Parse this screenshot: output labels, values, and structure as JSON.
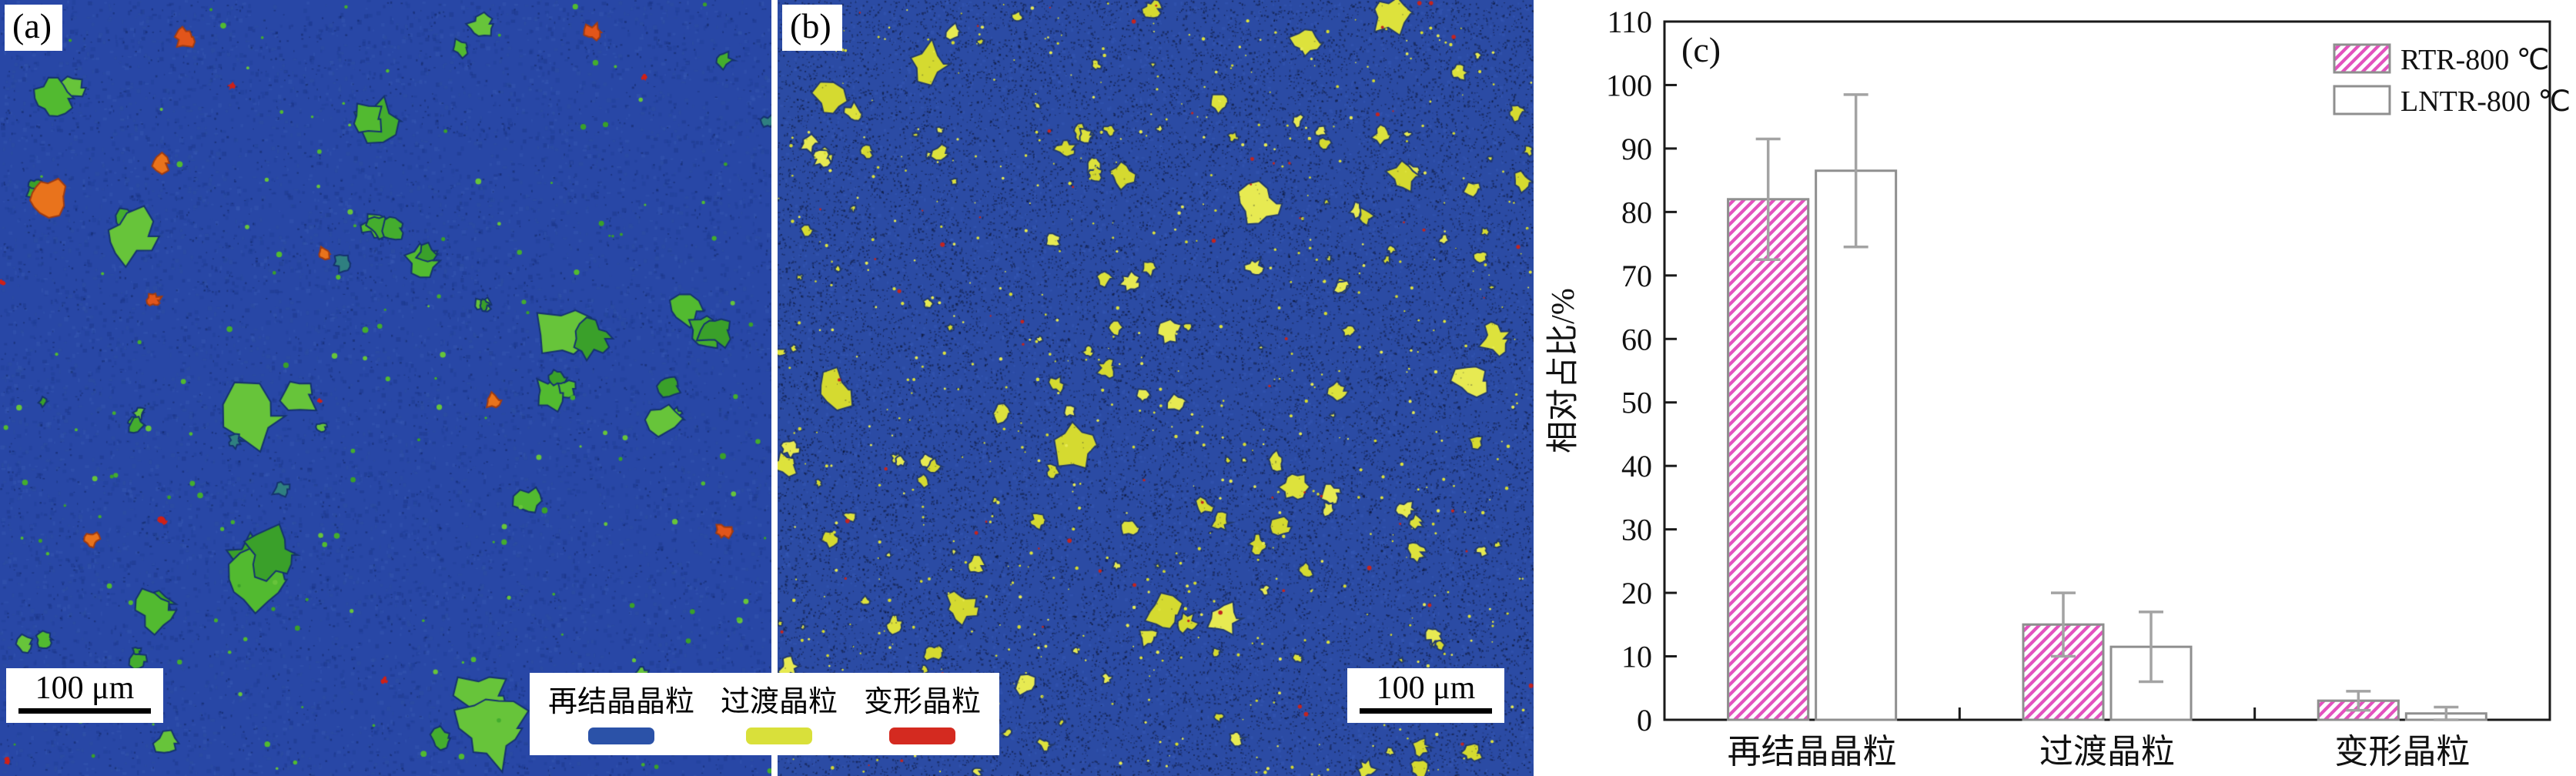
{
  "figure": {
    "panels": [
      {
        "id": "a",
        "label": "(a)"
      },
      {
        "id": "b",
        "label": "(b)"
      },
      {
        "id": "c",
        "label": "(c)"
      }
    ],
    "scale_bar": {
      "label": "100 μm"
    },
    "micrograph_legend": {
      "items": [
        {
          "label": "再结晶晶粒",
          "color": "#2b52a8"
        },
        {
          "label": "过渡晶粒",
          "color": "#d9e03a"
        },
        {
          "label": "变形晶粒",
          "color": "#d42a20"
        }
      ]
    }
  },
  "chart_data": {
    "type": "bar",
    "title": "",
    "categories": [
      "再结晶晶粒",
      "过渡晶粒",
      "变形晶粒"
    ],
    "series": [
      {
        "name": "RTR-800 ℃",
        "values": [
          82,
          15,
          3
        ],
        "errors": [
          9.5,
          5,
          1.5
        ],
        "style": "pink-hatched"
      },
      {
        "name": "LNTR-800 ℃",
        "values": [
          86.5,
          11.5,
          1
        ],
        "errors": [
          12,
          5.5,
          1
        ],
        "style": "white-outline"
      }
    ],
    "xlabel": "",
    "ylabel": "相对占比/%",
    "ylim": [
      0,
      110
    ],
    "ytick_step": 10,
    "grid": false,
    "legend_position": "top-right",
    "colors": {
      "hatch": "#e352be",
      "bar_outline": "#8f8f8f",
      "error_bar": "#a3a3a3",
      "axis": "#1a1a1a"
    }
  }
}
